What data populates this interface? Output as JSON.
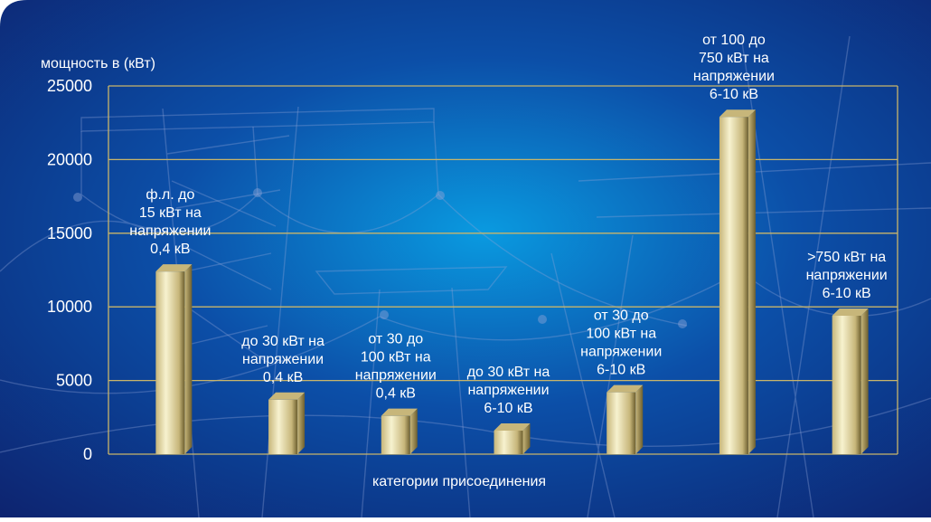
{
  "chart_data": {
    "type": "bar",
    "title": "",
    "ylabel": "мощность в (кВт)",
    "xlabel": "категории присоединения",
    "ylim": [
      0,
      25000
    ],
    "yticks": [
      0,
      5000,
      10000,
      15000,
      20000,
      25000
    ],
    "ytick_labels": [
      "0",
      "5000",
      "10000",
      "15000",
      "20000",
      "25000"
    ],
    "grid": true,
    "categories": [
      [
        "ф.л. до",
        "15 кВт на",
        "напряжении",
        "0,4 кВ"
      ],
      [
        "до 30 кВт на",
        "напряжении",
        "0,4 кВ"
      ],
      [
        "от 30 до",
        "100 кВт на",
        "напряжении",
        "0,4 кВ"
      ],
      [
        "до 30 кВт на",
        "напряжении",
        "6-10 кВ"
      ],
      [
        "от 30 до",
        "100 кВт на",
        "напряжении",
        "6-10 кВ"
      ],
      [
        "от 100 до",
        "750 кВт на",
        "напряжении",
        "6-10 кВ"
      ],
      [
        ">750 кВт на",
        "напряжении",
        "6-10 кВ"
      ]
    ],
    "values": [
      12400,
      3700,
      2600,
      1600,
      4200,
      22900,
      9400
    ]
  },
  "colors": {
    "background_center": "#0a9ae0",
    "background_mid": "#0c4fa8",
    "background_edge": "#0d2470",
    "gridline": "#c9b56a",
    "bar_light": "#f7f2cf",
    "bar_mid": "#c7b67a",
    "bar_dark": "#6d5f2f",
    "text": "#ffffff"
  }
}
